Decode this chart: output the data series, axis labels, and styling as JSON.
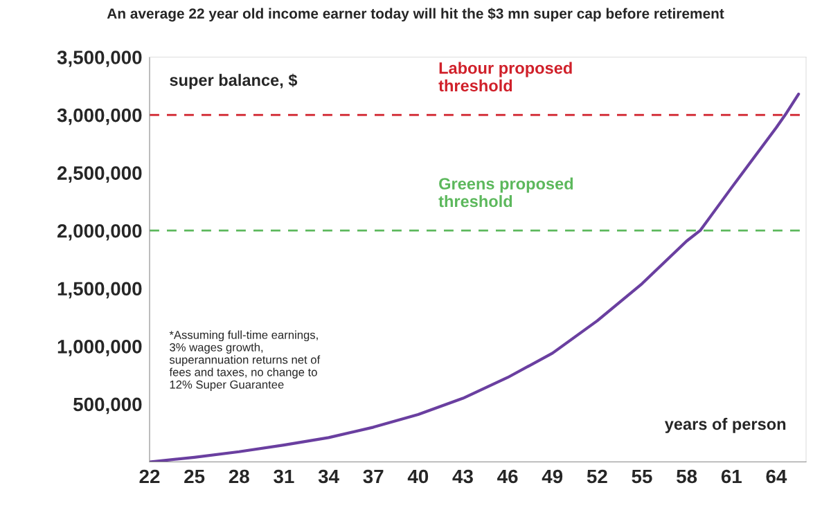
{
  "chart_data": {
    "type": "line",
    "title": "An average 22 year old income earner today will hit the $3 mn super cap before retirement",
    "ylabel": "super balance, $",
    "xlabel": "years of person",
    "x": [
      22,
      25,
      28,
      31,
      34,
      37,
      40,
      43,
      46,
      49,
      52,
      55,
      58,
      58.9,
      61,
      64,
      64.6,
      65.5
    ],
    "series": [
      {
        "color": "#6a3fa0",
        "values": [
          0,
          40000,
          88000,
          146000,
          210000,
          300000,
          410000,
          550000,
          730000,
          940000,
          1220000,
          1540000,
          1910000,
          2000000,
          2370000,
          2890000,
          3000000,
          3180000
        ]
      }
    ],
    "xlim": [
      22,
      66
    ],
    "xticks": [
      22,
      25,
      28,
      31,
      34,
      37,
      40,
      43,
      46,
      49,
      52,
      55,
      58,
      61,
      64
    ],
    "ylim": [
      0,
      3500000
    ],
    "yticks": [
      {
        "value": 0,
        "label": null
      },
      {
        "value": 500000,
        "label": "500,000"
      },
      {
        "value": 1000000,
        "label": "1,000,000"
      },
      {
        "value": 1500000,
        "label": "1,500,000"
      },
      {
        "value": 2000000,
        "label": "2,000,000"
      },
      {
        "value": 2500000,
        "label": "2,500,000"
      },
      {
        "value": 3000000,
        "label": "3,000,000"
      },
      {
        "value": 3500000,
        "label": "3,500,000"
      }
    ],
    "ref_lines": [
      {
        "axis": "y",
        "value": 3000000,
        "label": "Labour proposed\nthreshold",
        "color": "#d0202a",
        "line_style": "dashed"
      },
      {
        "axis": "y",
        "value": 2000000,
        "label": "Greens proposed\nthreshold",
        "color": "#5cb85c",
        "line_style": "dashed"
      }
    ],
    "annotations": [
      "*Assuming full-time earnings,\n3% wages growth,\nsuperannuation returns net of\nfees and taxes, no change to\n12% Super Guarantee"
    ],
    "grid": false,
    "legend": false,
    "marker": "none",
    "line_style": "solid"
  }
}
